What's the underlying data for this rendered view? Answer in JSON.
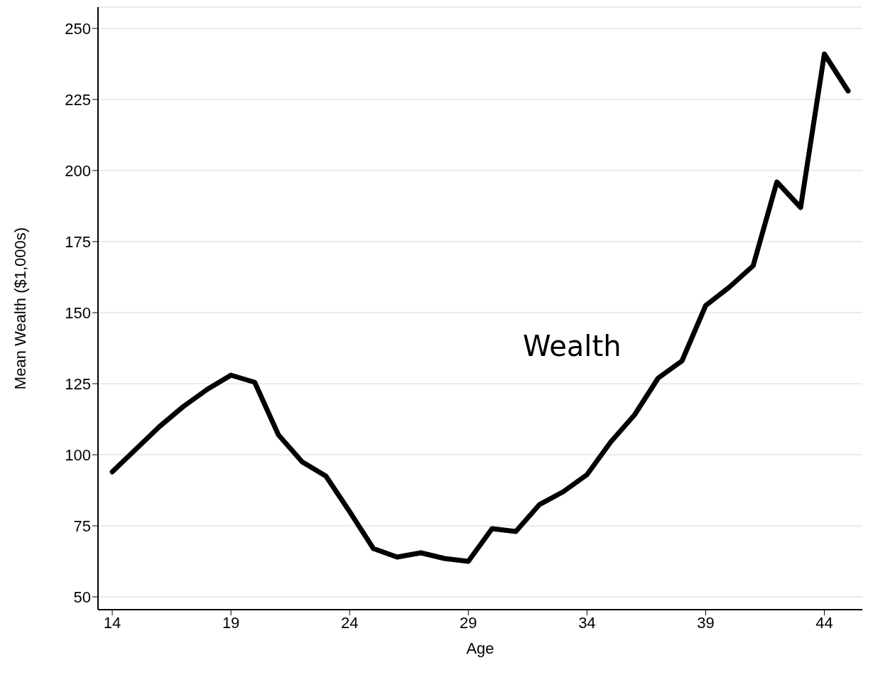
{
  "chart_data": {
    "type": "line",
    "xlabel": "Age",
    "ylabel": "Mean Wealth ($1,000s)",
    "x": [
      14,
      15,
      16,
      17,
      18,
      19,
      20,
      21,
      22,
      23,
      24,
      25,
      26,
      27,
      28,
      29,
      30,
      31,
      32,
      33,
      34,
      35,
      36,
      37,
      38,
      39,
      40,
      41,
      42,
      43,
      44,
      45
    ],
    "series": [
      {
        "name": "Wealth",
        "color": "#000000",
        "values": [
          94,
          102,
          110,
          117,
          123,
          128,
          125.5,
          107,
          97.5,
          92.5,
          80,
          67,
          64,
          65.5,
          63.5,
          62.5,
          74,
          73,
          82.5,
          87,
          93,
          104.5,
          114,
          127,
          133,
          152.5,
          159,
          166.5,
          196,
          187,
          241,
          228
        ]
      }
    ],
    "xlim": [
      13.4,
      45.6
    ],
    "xticks": [
      14,
      19,
      24,
      29,
      34,
      39,
      44
    ],
    "ylim": [
      45.5,
      257.5
    ],
    "yticks": [
      50,
      75,
      100,
      125,
      150,
      175,
      200,
      225,
      250
    ],
    "grid": "y",
    "marker": "none",
    "line_style": "solid"
  }
}
